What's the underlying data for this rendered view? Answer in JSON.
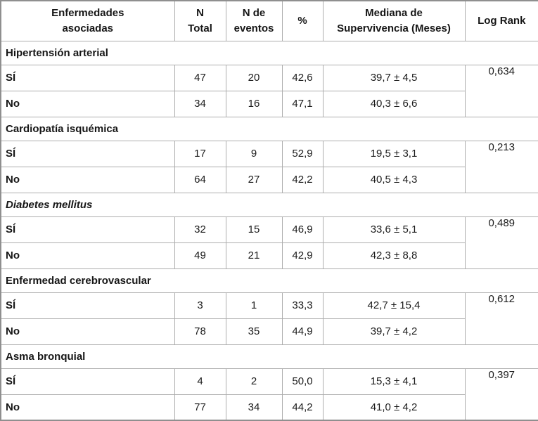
{
  "table": {
    "columns": [
      {
        "label": "Enfermedades\nasociadas"
      },
      {
        "label": "N\nTotal"
      },
      {
        "label": "N de\neventos"
      },
      {
        "label": "%"
      },
      {
        "label": "Mediana de\nSupervivencia (Meses)"
      },
      {
        "label": "Log Rank"
      }
    ],
    "groups": [
      {
        "label": "Hipertensión arterial",
        "italic": false,
        "log_rank": "0,634",
        "rows": [
          {
            "label": "SÍ",
            "n_total": "47",
            "n_eventos": "20",
            "pct": "42,6",
            "mediana": "39,7 ± 4,5"
          },
          {
            "label": "No",
            "n_total": "34",
            "n_eventos": "16",
            "pct": "47,1",
            "mediana": "40,3 ± 6,6"
          }
        ]
      },
      {
        "label": "Cardiopatía isquémica",
        "italic": false,
        "log_rank": "0,213",
        "rows": [
          {
            "label": "SÍ",
            "n_total": "17",
            "n_eventos": "9",
            "pct": "52,9",
            "mediana": "19,5 ± 3,1"
          },
          {
            "label": "No",
            "n_total": "64",
            "n_eventos": "27",
            "pct": "42,2",
            "mediana": "40,5 ± 4,3"
          }
        ]
      },
      {
        "label": "Diabetes mellitus",
        "italic": true,
        "log_rank": "0,489",
        "rows": [
          {
            "label": "SÍ",
            "n_total": "32",
            "n_eventos": "15",
            "pct": "46,9",
            "mediana": "33,6 ± 5,1"
          },
          {
            "label": "No",
            "n_total": "49",
            "n_eventos": "21",
            "pct": "42,9",
            "mediana": "42,3 ± 8,8"
          }
        ]
      },
      {
        "label": "Enfermedad cerebrovascular",
        "italic": false,
        "log_rank": "0,612",
        "rows": [
          {
            "label": "SÍ",
            "n_total": "3",
            "n_eventos": "1",
            "pct": "33,3",
            "mediana": "42,7 ± 15,4"
          },
          {
            "label": "No",
            "n_total": "78",
            "n_eventos": "35",
            "pct": "44,9",
            "mediana": "39,7 ± 4,2"
          }
        ]
      },
      {
        "label": "Asma bronquial",
        "italic": false,
        "log_rank": "0,397",
        "rows": [
          {
            "label": "SÍ",
            "n_total": "4",
            "n_eventos": "2",
            "pct": "50,0",
            "mediana": "15,3 ± 4,1"
          },
          {
            "label": "No",
            "n_total": "77",
            "n_eventos": "34",
            "pct": "44,2",
            "mediana": "41,0 ± 4,2"
          }
        ]
      }
    ]
  },
  "colors": {
    "border_inner": "#adadad",
    "border_outer": "#8f8f8f",
    "text": "#1b1b1b",
    "background": "#ffffff"
  }
}
